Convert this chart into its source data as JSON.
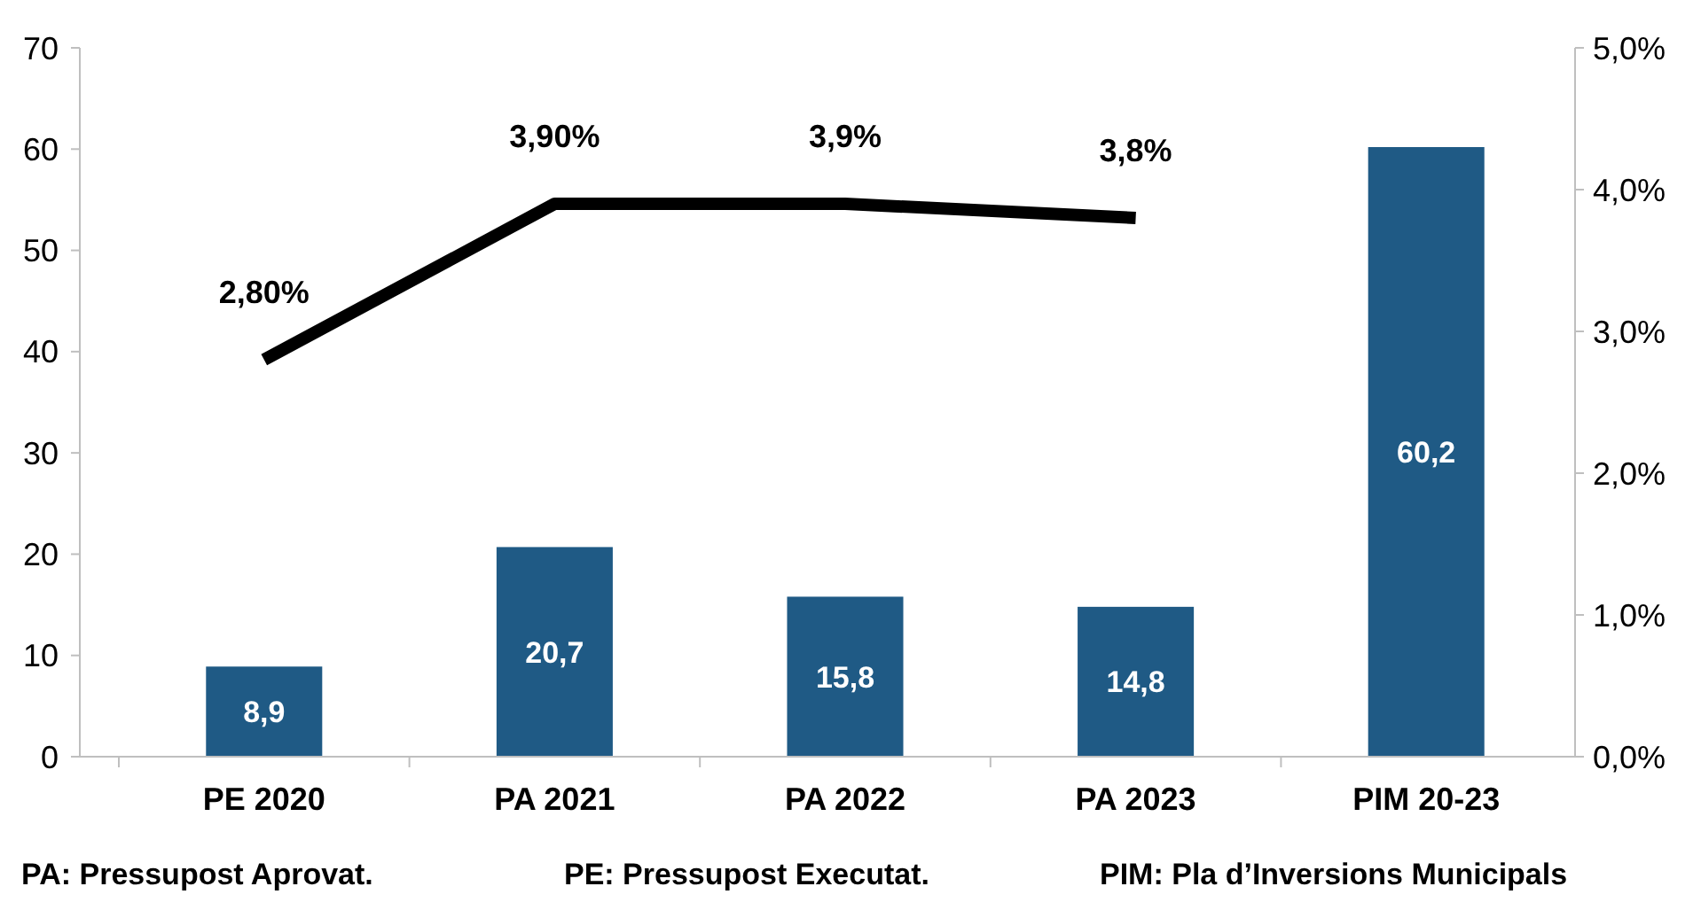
{
  "chart_data": {
    "type": "bar",
    "categories": [
      "PE 2020",
      "PA 2021",
      "PA 2022",
      "PA 2023",
      "PIM 20-23"
    ],
    "series": [
      {
        "color": "#1f5a85",
        "values": [
          8.9,
          20.7,
          15.8,
          14.8,
          60.2
        ],
        "value_labels": [
          "8,9",
          "20,7",
          "15,8",
          "14,8",
          "60,2"
        ]
      },
      {
        "type": "line",
        "axis": "y2",
        "color": "#000000",
        "values": [
          2.8,
          3.9,
          3.9,
          3.8,
          null
        ],
        "value_labels": [
          "2,80%",
          "3,90%",
          "3,9%",
          "3,8%",
          null
        ],
        "marker": "none",
        "line_style": "solid"
      }
    ],
    "ylim": [
      0,
      70
    ],
    "yticks": [
      0,
      10,
      20,
      30,
      40,
      50,
      60,
      70
    ],
    "y2lim": [
      0,
      5
    ],
    "y2ticks": [
      {
        "value": 0,
        "label": "0,0%"
      },
      {
        "value": 1,
        "label": "1,0%"
      },
      {
        "value": 2,
        "label": "2,0%"
      },
      {
        "value": 3,
        "label": "3,0%"
      },
      {
        "value": 4,
        "label": "4,0%"
      },
      {
        "value": 5,
        "label": "5,0%"
      }
    ],
    "grid": false,
    "annotations": [
      "PA: Pressupost Aprovat.",
      "PE: Pressupost Executat.",
      "PIM: Pla d’Inversions Municipals"
    ]
  }
}
